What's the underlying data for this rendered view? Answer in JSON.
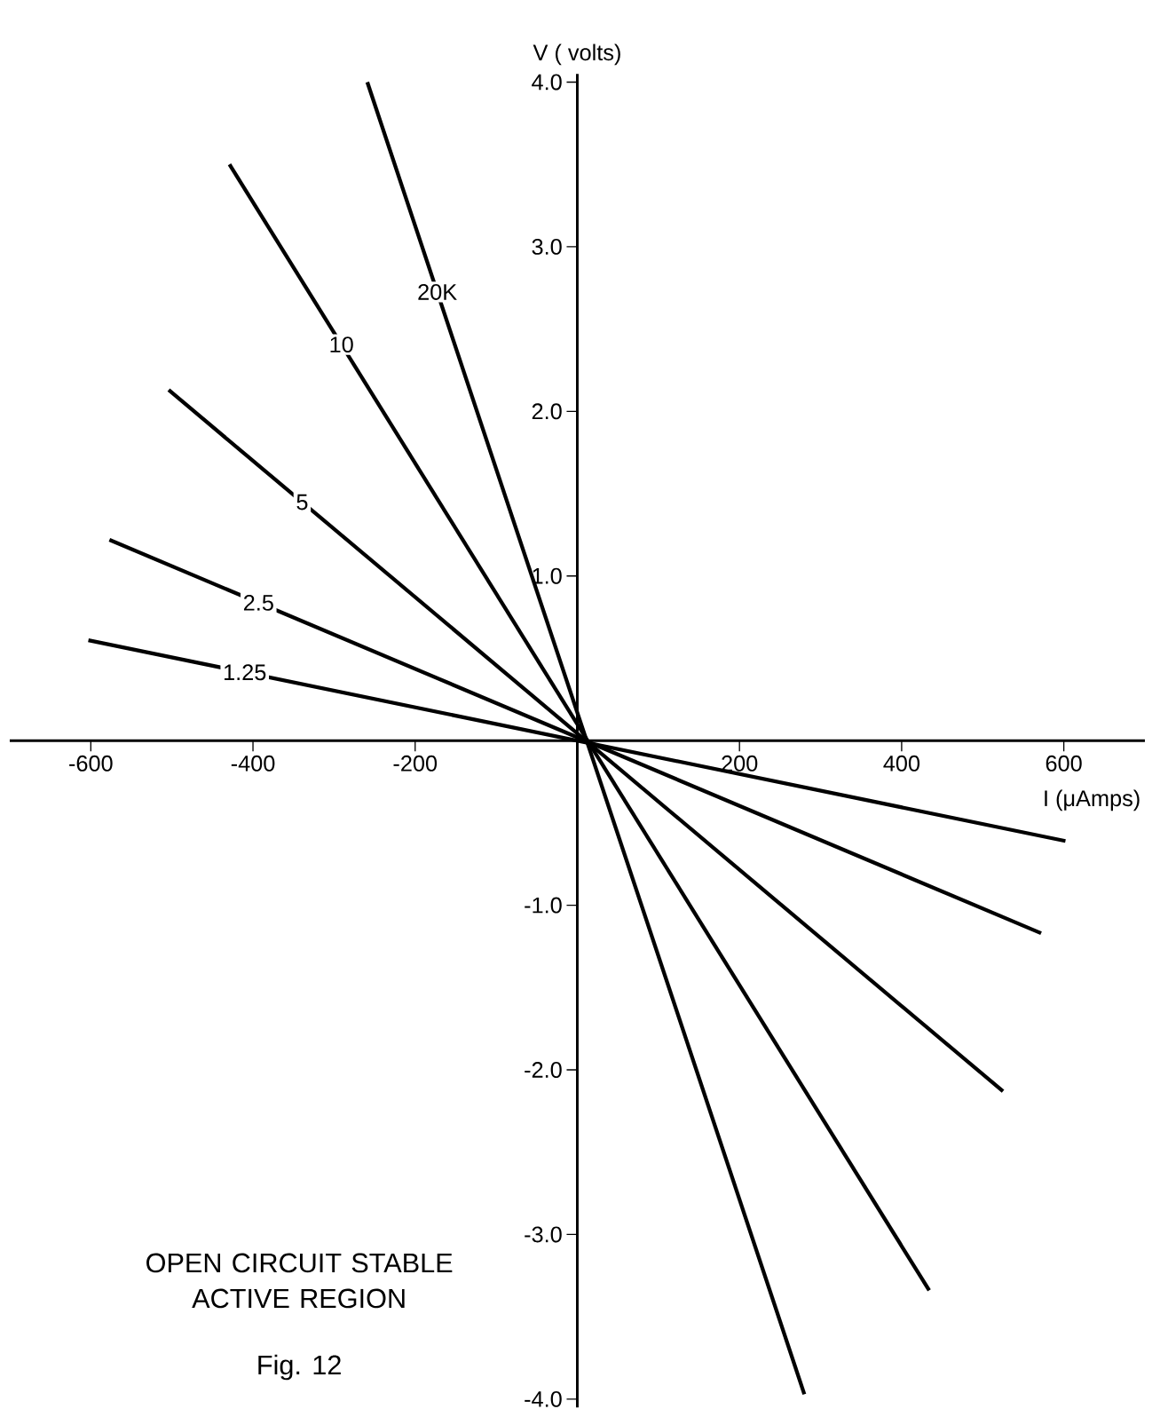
{
  "chart_data": {
    "type": "line",
    "xlabel": "I (μAmps)",
    "ylabel": "V ( volts)",
    "xlim": [
      -700,
      700
    ],
    "ylim": [
      -4.05,
      4.05
    ],
    "xticks": [
      -600,
      -400,
      -200,
      200,
      400,
      600
    ],
    "yticks": [
      {
        "value": 4,
        "label": "4.0"
      },
      {
        "value": 3,
        "label": "3.0"
      },
      {
        "value": 2,
        "label": "2.0"
      },
      {
        "value": 1,
        "label": "1.0"
      },
      {
        "value": -1,
        "label": "-1.0"
      },
      {
        "value": -2,
        "label": "-2.0"
      },
      {
        "value": -3,
        "label": "-3.0"
      },
      {
        "value": -4,
        "label": "-4.0"
      }
    ],
    "series": [
      {
        "name": "20K",
        "color": "#000000",
        "x": [
          -259,
          280
        ],
        "values": [
          4.0,
          -3.97
        ]
      },
      {
        "name": "10",
        "color": "#000000",
        "x": [
          -429,
          434
        ],
        "values": [
          3.5,
          -3.34
        ]
      },
      {
        "name": "5",
        "color": "#000000",
        "x": [
          -504,
          525
        ],
        "values": [
          2.13,
          -2.13
        ]
      },
      {
        "name": "2.5",
        "color": "#000000",
        "x": [
          -577,
          572
        ],
        "values": [
          1.22,
          -1.17
        ]
      },
      {
        "name": "1.25",
        "color": "#000000",
        "x": [
          -603,
          602
        ],
        "values": [
          0.61,
          -0.61
        ]
      }
    ],
    "annotations": [
      "OPEN CIRCUIT STABLE ACTIVE REGION",
      "Fig. 12"
    ]
  }
}
